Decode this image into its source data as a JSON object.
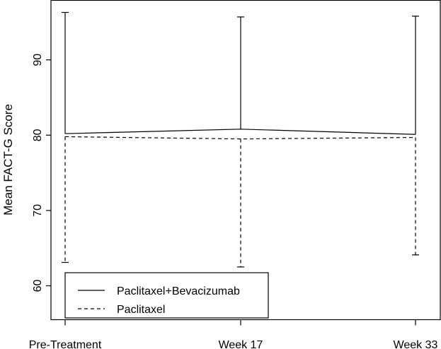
{
  "chart_data": {
    "type": "line",
    "title": "",
    "xlabel": "",
    "ylabel": "Mean FACT-G Score",
    "categories": [
      "Pre-Treatment",
      "Week 17",
      "Week 33"
    ],
    "ylim": [
      55.5,
      97.9
    ],
    "yticks": [
      60,
      70,
      80,
      90
    ],
    "grid": false,
    "legend_position": "bottom-left",
    "series": [
      {
        "name": "Paclitaxel+Bevacizumab",
        "line_style": "solid",
        "values": [
          80.2,
          80.8,
          80.1
        ],
        "error_bars": "upper",
        "error_upper": [
          96.3,
          95.7,
          95.8
        ]
      },
      {
        "name": "Paclitaxel",
        "line_style": "dashed",
        "values": [
          79.8,
          79.5,
          79.7
        ],
        "error_bars": "lower",
        "error_lower": [
          63.1,
          62.5,
          64.1
        ]
      }
    ],
    "colors": {
      "line": "#000000",
      "background": "#ffffff"
    }
  }
}
